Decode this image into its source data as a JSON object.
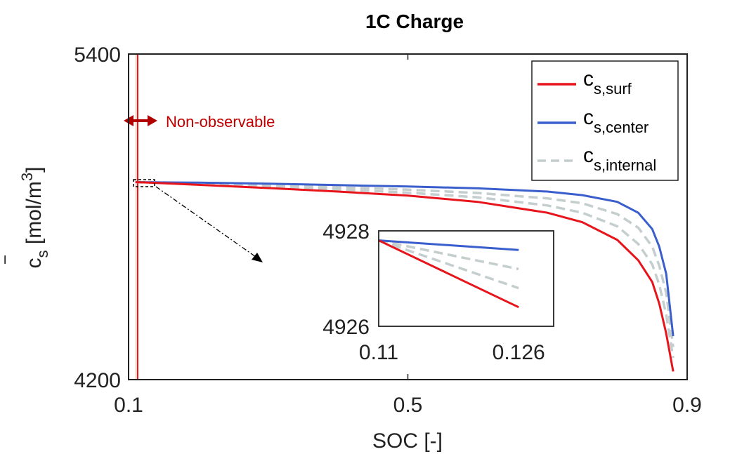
{
  "chart_data": {
    "type": "line",
    "title": "1C Charge",
    "xlabel": "SOC [-]",
    "ylabel": "c̄s [mol/m3]",
    "ylabel_parts": {
      "base": "c",
      "overline": "‾",
      "sub": "s",
      "unit": "[mol/m",
      "unit_sup": "3",
      "unit_close": "]"
    },
    "xlim": [
      0.1,
      0.9
    ],
    "ylim": [
      4200,
      5400
    ],
    "xticks": [
      0.1,
      0.5,
      0.9
    ],
    "xtick_labels": [
      "0.1",
      "0.5",
      "0.9"
    ],
    "yticks": [
      4200,
      5400
    ],
    "ytick_labels": [
      "4200",
      "5400"
    ],
    "legend_position": "top-right",
    "series": [
      {
        "name": "c_s,surf",
        "label_base": "c",
        "label_sub": "s,surf",
        "color": "#e8141b",
        "dash": "solid",
        "x": [
          0.11,
          0.126,
          0.2,
          0.3,
          0.4,
          0.5,
          0.6,
          0.7,
          0.75,
          0.8,
          0.83,
          0.85,
          0.86,
          0.87,
          0.88
        ],
        "y": [
          4927.8,
          4926.4,
          4918,
          4906,
          4893,
          4878,
          4855,
          4815,
          4780,
          4715,
          4640,
          4560,
          4480,
          4370,
          4230
        ]
      },
      {
        "name": "c_s,center",
        "label_base": "c",
        "label_sub": "s,center",
        "color": "#3a5fcd",
        "dash": "solid",
        "x": [
          0.11,
          0.126,
          0.2,
          0.3,
          0.4,
          0.5,
          0.6,
          0.7,
          0.75,
          0.8,
          0.83,
          0.85,
          0.86,
          0.87,
          0.88
        ],
        "y": [
          4927.8,
          4927.6,
          4926,
          4922,
          4917,
          4912,
          4905,
          4893,
          4880,
          4855,
          4815,
          4755,
          4690,
          4590,
          4360
        ]
      },
      {
        "name": "c_s,internal",
        "label_base": "c",
        "label_sub": "s,internal",
        "color": "#c5cece",
        "dash": "dashed",
        "curves": [
          {
            "x": [
              0.11,
              0.126,
              0.2,
              0.3,
              0.4,
              0.5,
              0.6,
              0.7,
              0.75,
              0.8,
              0.83,
              0.85,
              0.86,
              0.87,
              0.88
            ],
            "y": [
              4927.8,
              4927.2,
              4924,
              4917,
              4909,
              4900,
              4888,
              4868,
              4850,
              4810,
              4760,
              4690,
              4620,
              4520,
              4320
            ]
          },
          {
            "x": [
              0.11,
              0.126,
              0.2,
              0.3,
              0.4,
              0.5,
              0.6,
              0.7,
              0.75,
              0.8,
              0.83,
              0.85,
              0.86,
              0.87,
              0.88
            ],
            "y": [
              4927.8,
              4926.8,
              4921,
              4912,
              4901,
              4889,
              4872,
              4842,
              4815,
              4765,
              4700,
              4625,
              4550,
              4440,
              4280
            ]
          }
        ]
      }
    ],
    "annotation": {
      "text": "Non-observable",
      "color": "#c00000",
      "band_x": [
        0.105,
        0.113
      ],
      "line_x": 0.113
    },
    "inset": {
      "xlim": [
        0.11,
        0.13
      ],
      "ylim": [
        4926,
        4928
      ],
      "xticks": [
        0.11,
        0.126
      ],
      "xtick_labels": [
        "0.11",
        "0.126"
      ],
      "yticks": [
        4926,
        4928
      ],
      "ytick_labels": [
        "4926",
        "4928"
      ],
      "zoom_box_x": [
        0.105,
        0.12
      ],
      "zoom_box_y": [
        4925,
        4930
      ]
    }
  }
}
